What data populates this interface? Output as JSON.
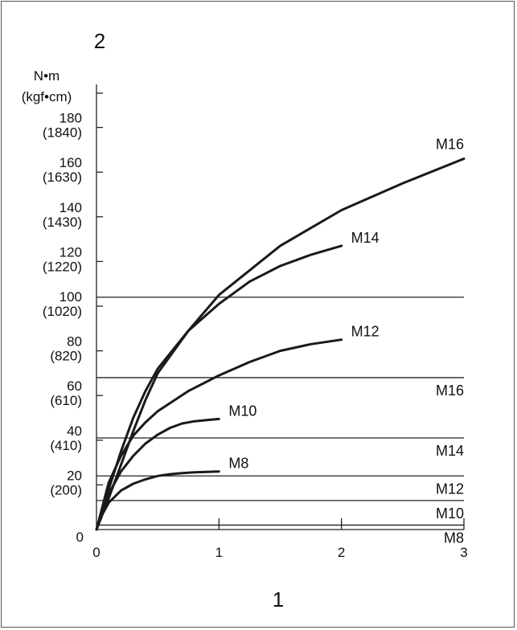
{
  "figure": {
    "top_label": "2",
    "bottom_label": "1",
    "y_unit_1": "N•m",
    "y_unit_2": "(kgf•cm)",
    "x_ticks": [
      "0",
      "1",
      "2",
      "3"
    ],
    "y_ticks": [
      {
        "nm": "0",
        "kgf": ""
      },
      {
        "nm": "20",
        "kgf": "(200)"
      },
      {
        "nm": "40",
        "kgf": "(410)"
      },
      {
        "nm": "60",
        "kgf": "(610)"
      },
      {
        "nm": "80",
        "kgf": "(820)"
      },
      {
        "nm": "100",
        "kgf": "(1020)"
      },
      {
        "nm": "120",
        "kgf": "(1220)"
      },
      {
        "nm": "140",
        "kgf": "(1430)"
      },
      {
        "nm": "160",
        "kgf": "(1630)"
      },
      {
        "nm": "180",
        "kgf": "(1840)"
      }
    ]
  },
  "chart_data": {
    "type": "line",
    "xlim": [
      0,
      3
    ],
    "ylim": [
      0,
      195
    ],
    "grid": false,
    "series": [
      {
        "name": "M8",
        "x": [
          0,
          0.05,
          0.1,
          0.2,
          0.3,
          0.4,
          0.5,
          0.6,
          0.7,
          0.8,
          0.9,
          1.0
        ],
        "y": [
          0,
          7,
          12,
          17.5,
          20.5,
          22.5,
          24,
          24.8,
          25.3,
          25.6,
          25.8,
          26
        ]
      },
      {
        "name": "M10",
        "x": [
          0,
          0.05,
          0.1,
          0.2,
          0.3,
          0.4,
          0.5,
          0.6,
          0.7,
          0.8,
          0.9,
          1.0
        ],
        "y": [
          0,
          9,
          16,
          26,
          33,
          38.5,
          42.5,
          45.5,
          47.5,
          48.5,
          49,
          49.5
        ]
      },
      {
        "name": "M12",
        "x": [
          0,
          0.1,
          0.2,
          0.3,
          0.4,
          0.5,
          0.75,
          1.0,
          1.25,
          1.5,
          1.75,
          2.0
        ],
        "y": [
          0,
          21,
          33,
          42,
          48,
          53,
          62,
          69,
          75,
          80,
          83,
          85
        ]
      },
      {
        "name": "M14",
        "x": [
          0,
          0.1,
          0.2,
          0.3,
          0.4,
          0.5,
          0.75,
          1.0,
          1.25,
          1.5,
          1.75,
          2.0
        ],
        "y": [
          0,
          18,
          35,
          50,
          62,
          72,
          89,
          101,
          111,
          118,
          123,
          127
        ]
      },
      {
        "name": "M16",
        "x": [
          0,
          0.1,
          0.2,
          0.3,
          0.4,
          0.5,
          0.75,
          1.0,
          1.5,
          2.0,
          2.5,
          3.0
        ],
        "y": [
          0,
          14,
          29,
          44,
          58,
          70,
          89,
          105,
          127,
          143,
          155,
          166
        ]
      }
    ],
    "limits": [
      {
        "name": "M8",
        "y": 2
      },
      {
        "name": "M10",
        "y": 13
      },
      {
        "name": "M12",
        "y": 24
      },
      {
        "name": "M14",
        "y": 41
      },
      {
        "name": "M16",
        "y": 68
      },
      {
        "name": "",
        "y": 104
      }
    ]
  }
}
